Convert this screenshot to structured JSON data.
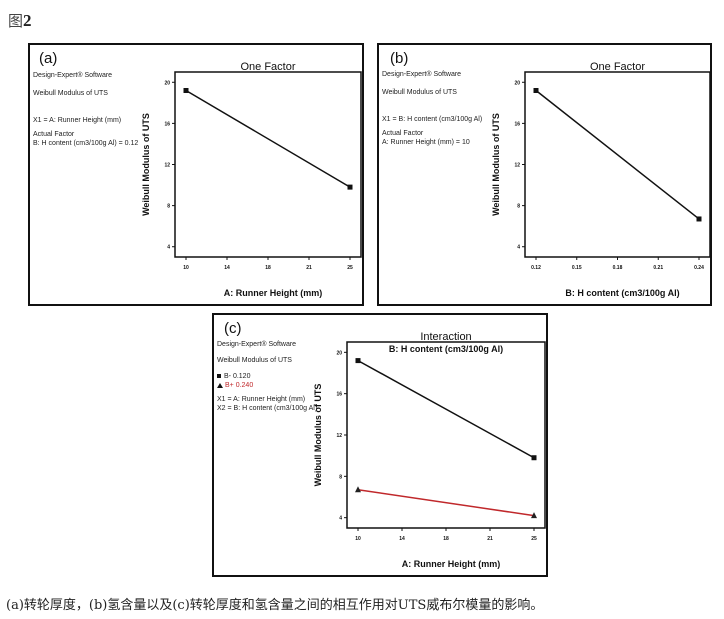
{
  "figure": {
    "title_prefix": "图",
    "title_number": "2",
    "caption": "(a)转轮厚度，(b)氢含量以及(c)转轮厚度和氢含量之间的相互作用对UTS威布尔模量的影响。"
  },
  "panels": [
    {
      "label": "(a)",
      "info": [
        "Design-Expert® Software",
        "Weibull Modulus of UTS",
        "X1 = A: Runner Height (mm)",
        "Actual Factor",
        "B: H content (cm3/100g Al) = 0.12"
      ]
    },
    {
      "label": "(b)",
      "info": [
        "Design-Expert® Software",
        "Weibull Modulus of UTS",
        "X1 = B: H content (cm3/100g Al)",
        "Actual Factor",
        "A: Runner Height (mm) = 10"
      ]
    },
    {
      "label": "(c)",
      "info": [
        "Design-Expert® Software",
        "Weibull Modulus of UTS",
        "B- 0.120",
        "B+ 0.240",
        "X1 = A: Runner Height (mm)",
        "X2 = B: H content (cm3/100g Al)"
      ]
    }
  ],
  "colors": {
    "series_low": "#111111",
    "series_high": "#c0282b"
  },
  "chart_data": [
    {
      "type": "line",
      "title": "One Factor",
      "xlabel": "A: Runner Height (mm)",
      "ylabel": "Weibull Modulus of UTS",
      "x_ticks": [
        "10",
        "14",
        "18",
        "21",
        "25"
      ],
      "y_ticks": [
        "4",
        "8",
        "12",
        "16",
        "20"
      ],
      "xlim": [
        10,
        25
      ],
      "ylim": [
        3,
        21
      ],
      "grid": false,
      "series": [
        {
          "name": "B = 0.12",
          "x": [
            10,
            25
          ],
          "values": [
            19.2,
            9.8
          ],
          "marker": "square"
        }
      ]
    },
    {
      "type": "line",
      "title": "One Factor",
      "xlabel": "B: H content (cm3/100g Al)",
      "ylabel": "Weibull Modulus of UTS",
      "x_ticks": [
        "0.12",
        "0.15",
        "0.18",
        "0.21",
        "0.24"
      ],
      "y_ticks": [
        "4",
        "8",
        "12",
        "16",
        "20"
      ],
      "xlim": [
        0.12,
        0.24
      ],
      "ylim": [
        3,
        21
      ],
      "grid": false,
      "series": [
        {
          "name": "A = 10",
          "x": [
            0.12,
            0.24
          ],
          "values": [
            19.2,
            6.7
          ],
          "marker": "square"
        }
      ]
    },
    {
      "type": "line",
      "title": "Interaction",
      "subtitle": "B: H content (cm3/100g Al)",
      "xlabel": "A: Runner Height (mm)",
      "ylabel": "Weibull Modulus of UTS",
      "x_ticks": [
        "10",
        "14",
        "18",
        "21",
        "25"
      ],
      "y_ticks": [
        "4",
        "8",
        "12",
        "16",
        "20"
      ],
      "xlim": [
        10,
        25
      ],
      "ylim": [
        3,
        21
      ],
      "grid": false,
      "legend_position": "left-panel",
      "series": [
        {
          "name": "B- 0.120",
          "x": [
            10,
            25
          ],
          "values": [
            19.2,
            9.8
          ],
          "marker": "square",
          "color": "#111111"
        },
        {
          "name": "B+ 0.240",
          "x": [
            10,
            25
          ],
          "values": [
            6.7,
            4.2
          ],
          "marker": "triangle",
          "color": "#c0282b"
        }
      ]
    }
  ]
}
